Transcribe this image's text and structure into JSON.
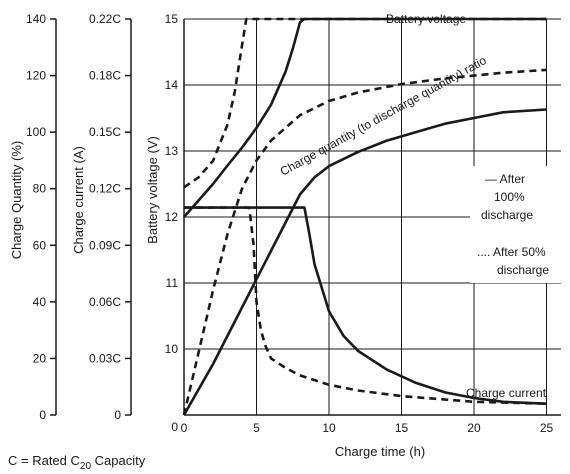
{
  "chart_data": {
    "type": "line",
    "xlabel": "Charge time (h)",
    "x_ticks": [
      "0",
      "5",
      "10",
      "15",
      "20",
      "25"
    ],
    "xlim": [
      0,
      26
    ],
    "y_axes": [
      {
        "name": "charge_quantity",
        "label": "Charge Quantity (%)",
        "ticks": [
          "0",
          "20",
          "40",
          "60",
          "80",
          "100",
          "120",
          "140"
        ],
        "ylim": [
          0,
          140
        ]
      },
      {
        "name": "charge_current",
        "label": "Charge current (A)",
        "ticks": [
          "0",
          "0.03C",
          "0.06C",
          "0.09C",
          "0.12C",
          "0.15C",
          "0.18C",
          "0.22C"
        ],
        "ylim": [
          0,
          0.21
        ]
      },
      {
        "name": "battery_voltage",
        "label": "Battery voltage (V)",
        "ticks": [
          "",
          "10",
          "11",
          "12",
          "13",
          "14",
          "15"
        ],
        "ylim": [
          9,
          15
        ],
        "bottom_tick": "0"
      }
    ],
    "grid": true,
    "series": [
      {
        "name": "Battery voltage",
        "style": "solid",
        "axis": "battery_voltage",
        "x": [
          0,
          1,
          2,
          3,
          4,
          5,
          6,
          7,
          7.5,
          8,
          8.3,
          10,
          15,
          20,
          25
        ],
        "y": [
          12.0,
          12.25,
          12.5,
          12.78,
          13.05,
          13.35,
          13.7,
          14.2,
          14.55,
          14.95,
          15.0,
          15.0,
          15.0,
          15.0,
          15.0
        ]
      },
      {
        "name": "",
        "style": "dashed",
        "axis": "battery_voltage",
        "x": [
          0,
          1,
          2,
          3,
          3.5,
          4,
          4.3,
          4.6,
          5,
          10,
          15,
          20,
          25
        ],
        "y": [
          12.45,
          12.6,
          12.85,
          13.4,
          13.9,
          14.6,
          15.0,
          15.0,
          15.0,
          15.0,
          15.0,
          15.0,
          15.0
        ]
      },
      {
        "name": "",
        "style": "solid",
        "axis": "charge_quantity",
        "x": [
          0,
          2,
          4,
          6,
          8,
          9,
          10,
          12,
          14,
          16,
          18,
          20,
          22,
          25
        ],
        "y": [
          0,
          18,
          38,
          58,
          78,
          84,
          88,
          93,
          97,
          100,
          103,
          105,
          107,
          108
        ]
      },
      {
        "name": "",
        "style": "dashed",
        "axis": "charge_quantity",
        "x": [
          0,
          1,
          2,
          3,
          4,
          5,
          6,
          8,
          10,
          12,
          15,
          18,
          20,
          22,
          25
        ],
        "y": [
          0,
          22,
          44,
          64,
          80,
          90,
          97,
          106,
          111,
          114,
          117,
          119,
          120,
          121,
          122
        ]
      },
      {
        "name": "Charge current",
        "style": "solid",
        "axis": "charge_current",
        "x": [
          0,
          8.3,
          8.6,
          9,
          10,
          11,
          12,
          14,
          16,
          18,
          20,
          22,
          25
        ],
        "y": [
          0.11,
          0.11,
          0.098,
          0.08,
          0.055,
          0.042,
          0.034,
          0.024,
          0.017,
          0.012,
          0.009,
          0.007,
          0.006
        ]
      },
      {
        "name": "",
        "style": "dashed",
        "axis": "charge_current",
        "x": [
          0,
          4.5,
          4.8,
          5,
          5.3,
          5.6,
          6,
          7,
          8,
          10,
          12,
          15,
          20,
          25
        ],
        "y": [
          0.11,
          0.11,
          0.09,
          0.06,
          0.045,
          0.037,
          0.03,
          0.025,
          0.021,
          0.016,
          0.013,
          0.01,
          0.007,
          0.006
        ]
      }
    ],
    "annotations": {
      "battery_voltage": "Battery voltage",
      "charge_quantity_ratio": "Charge quantity (to discharge quantity) ratio",
      "charge_current": "Charge current",
      "legend_after100": [
        "— After",
        "100%",
        "discharge"
      ],
      "legend_after50": [
        ".... After 50%",
        "discharge"
      ],
      "footnote_prefix": "C = Rated C",
      "footnote_sub": "20",
      "footnote_suffix": " Capacity"
    }
  }
}
